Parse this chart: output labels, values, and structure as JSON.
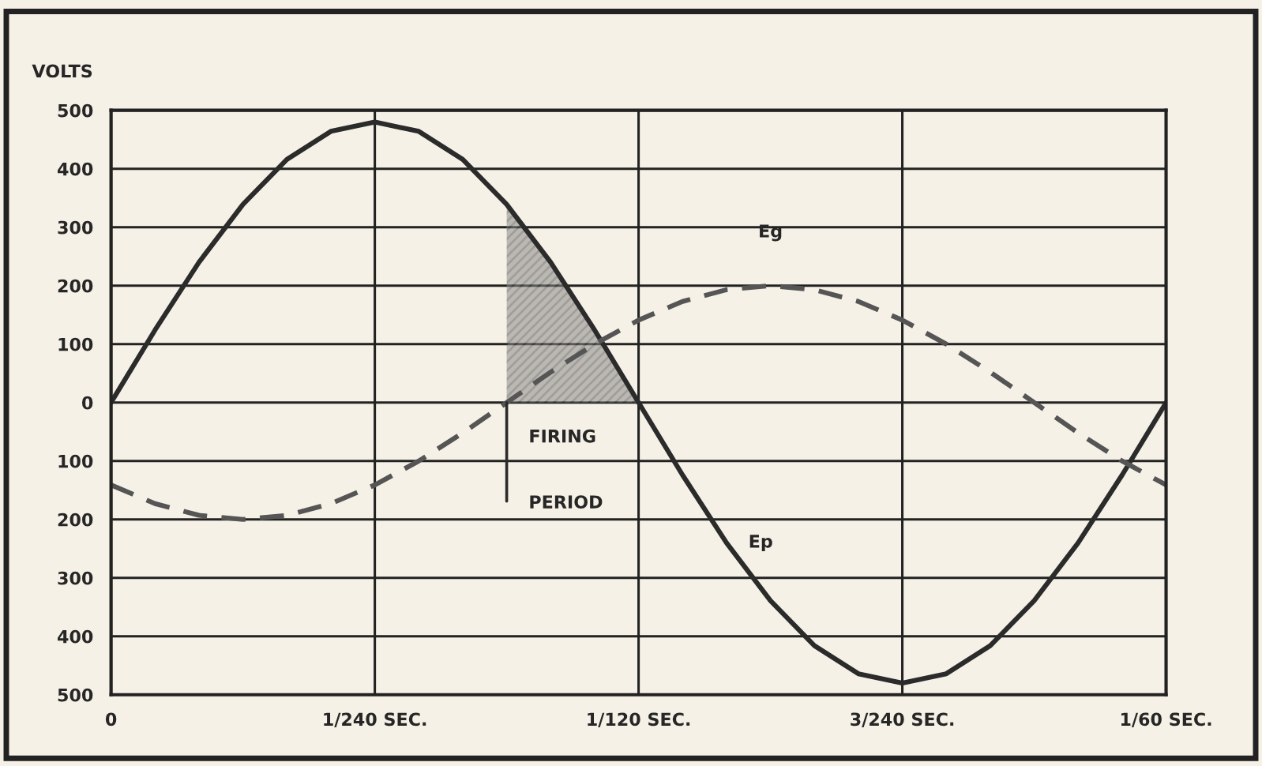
{
  "chart_data": {
    "type": "line",
    "ylabel": "VOLTS",
    "ylim": [
      -500,
      500
    ],
    "yticks": [
      {
        "value": -500,
        "label": "500"
      },
      {
        "value": -400,
        "label": "400"
      },
      {
        "value": -300,
        "label": "300"
      },
      {
        "value": -200,
        "label": "200"
      },
      {
        "value": -100,
        "label": "100"
      },
      0,
      100,
      200,
      300,
      400,
      500
    ],
    "grid": true,
    "categories": [
      "0",
      null,
      null,
      null,
      null,
      null,
      "1/240 SEC.",
      null,
      null,
      null,
      null,
      null,
      "1/120 SEC.",
      null,
      null,
      null,
      null,
      null,
      "3/240 SEC.",
      null,
      null,
      null,
      null,
      null,
      "1/60 SEC."
    ],
    "series": [
      {
        "name": "Ep",
        "color": "#2b2b2b",
        "line_style": "solid",
        "values": [
          0,
          124,
          240,
          339,
          416,
          464,
          480,
          464,
          416,
          339,
          240,
          124,
          0,
          -124,
          -240,
          -339,
          -416,
          -464,
          -480,
          -464,
          -416,
          -339,
          -240,
          -124,
          0
        ]
      },
      {
        "name": "Eg",
        "color": "#555555",
        "line_style": "dashed",
        "values": [
          -141,
          -173,
          -193,
          -200,
          -193,
          -173,
          -141,
          -100,
          -52,
          0,
          52,
          100,
          141,
          173,
          193,
          200,
          193,
          173,
          141,
          100,
          52,
          0,
          -52,
          -100,
          -141
        ]
      },
      {
        "type": "area",
        "color": "#8a8a8a",
        "values": [
          null,
          null,
          null,
          null,
          null,
          null,
          null,
          null,
          null,
          339,
          240,
          124,
          0,
          null,
          null,
          null,
          null,
          null,
          null,
          null,
          null,
          null,
          null,
          null,
          null
        ]
      }
    ],
    "annotations": [
      "FIRING",
      "PERIOD"
    ]
  }
}
